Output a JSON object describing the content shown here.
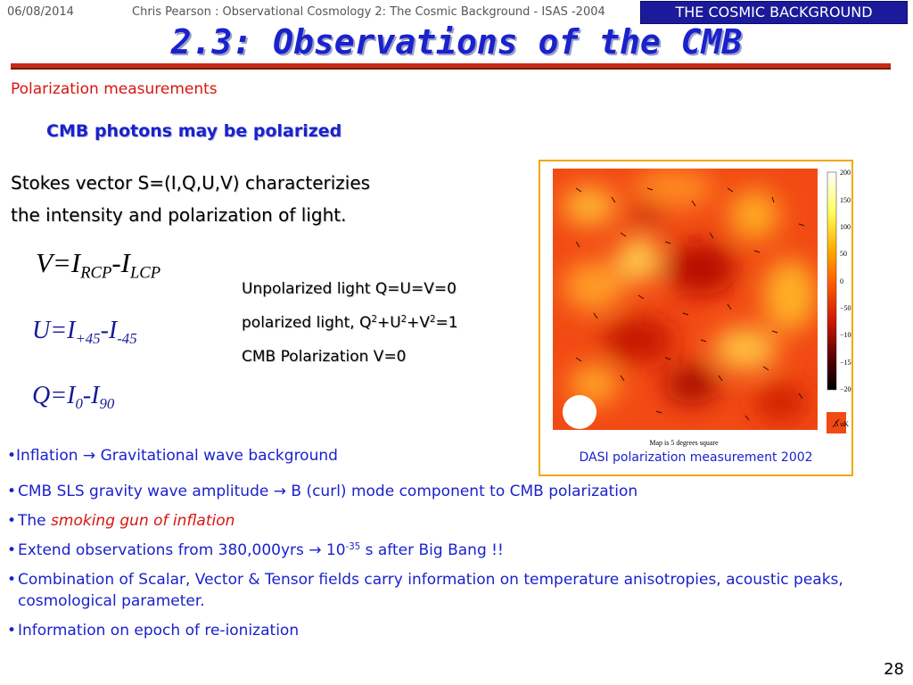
{
  "header": {
    "date": "06/08/2014",
    "author_line": "Chris Pearson :   Observational Cosmology 2: The Cosmic Background - ISAS -2004",
    "badge": "THE COSMIC BACKGROUND"
  },
  "title": "2.3: Observations of the CMB",
  "section": "Polarization measurements",
  "heading": "CMB photons may be polarized",
  "stokes_lines": [
    "Stokes vector S=(I,Q,U,V) characterizies",
    "the intensity and polarization of light."
  ],
  "equations": {
    "v": {
      "lhs": "V=I",
      "sub1": "RCP",
      "mid": "-I",
      "sub2": "LCP"
    },
    "u": {
      "lhs": "U=I",
      "sub1": "+45",
      "mid": "-I",
      "sub2": "-45"
    },
    "q": {
      "lhs": "Q=I",
      "sub1": "0",
      "mid": "-I",
      "sub2": "90"
    }
  },
  "facts": {
    "line1": "Unpolarized light Q=U=V=0",
    "line2_a": "polarized light, Q",
    "line2_b": "+U",
    "line2_c": "+V",
    "line2_d": "=1",
    "sup": "2",
    "line3": "CMB Polarization V=0"
  },
  "figure": {
    "colorbar_labels": [
      "200 uK",
      "150",
      "100",
      "50",
      "0",
      "−50",
      "−100",
      "−150",
      "−200"
    ],
    "scale_label": "5 uK",
    "map_note": "Map is 5 degrees square",
    "caption": "DASI polarization measurement 2002"
  },
  "bullet_first": {
    "a": "Inflation ",
    "arrow": "→",
    "b": " Gravitational wave background"
  },
  "bullets": {
    "b2_a": "CMB SLS gravity wave amplitude ",
    "b2_b": " B (curl) mode component to CMB polarization",
    "b3_a": "The ",
    "b3_b": "smoking gun of inflation",
    "b4_a": "Extend observations from 380,000yrs ",
    "b4_b": " 10",
    "b4_sup": "-35",
    "b4_c": " s after Big Bang !!",
    "b5": "Combination of Scalar, Vector & Tensor fields carry information on temperature anisotropies, acoustic peaks, cosmological parameter.",
    "b6": "Information on epoch of re-ionization",
    "arrow": "→",
    "dot": "•"
  },
  "page_number": "28",
  "colors": {
    "title_blue": "#1a22cc",
    "accent_red": "#d8150e",
    "badge_bg": "#1a1a9a",
    "rule": "#c62a16"
  }
}
